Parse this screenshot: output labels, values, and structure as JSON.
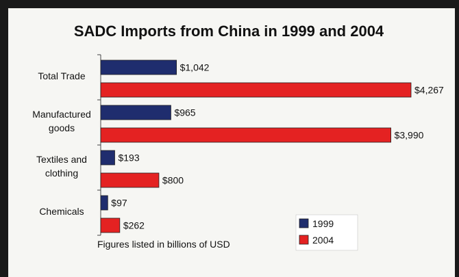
{
  "chart_data": {
    "type": "bar",
    "orientation": "horizontal",
    "title": "SADC Imports from China in 1999 and 2004",
    "categories": [
      "Total Trade",
      "Manufactured goods",
      "Textiles and clothing",
      "Chemicals"
    ],
    "category_lines": [
      [
        "Total Trade"
      ],
      [
        "Manufactured",
        "goods"
      ],
      [
        "Textiles and",
        "clothing"
      ],
      [
        "Chemicals"
      ]
    ],
    "series": [
      {
        "name": "1999",
        "color": "#1f2d6e",
        "values": [
          1042,
          965,
          193,
          97
        ],
        "labels": [
          "$1,042",
          "$965",
          "$193",
          "$97"
        ]
      },
      {
        "name": "2004",
        "color": "#e42222",
        "values": [
          4267,
          3990,
          800,
          262
        ],
        "labels": [
          "$4,267",
          "$3,990",
          "$800",
          "$262"
        ]
      }
    ],
    "xlim": [
      0,
      4267
    ],
    "grid": false,
    "legend_position": "bottom-right",
    "note": "Figures listed in billions of USD"
  }
}
